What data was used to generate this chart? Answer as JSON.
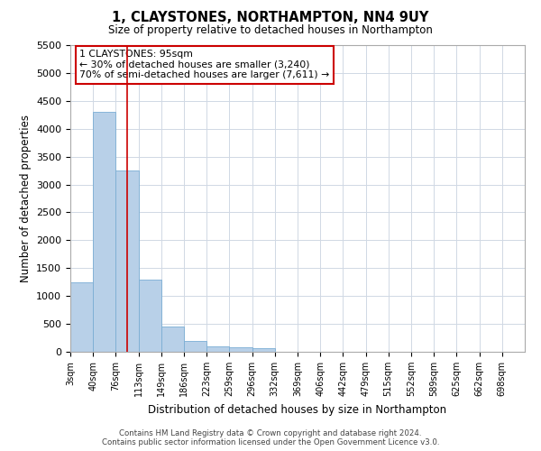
{
  "title": "1, CLAYSTONES, NORTHAMPTON, NN4 9UY",
  "subtitle": "Size of property relative to detached houses in Northampton",
  "xlabel": "Distribution of detached houses by size in Northampton",
  "ylabel": "Number of detached properties",
  "footer_line1": "Contains HM Land Registry data © Crown copyright and database right 2024.",
  "footer_line2": "Contains public sector information licensed under the Open Government Licence v3.0.",
  "annotation_line1": "1 CLAYSTONES: 95sqm",
  "annotation_line2": "← 30% of detached houses are smaller (3,240)",
  "annotation_line3": "70% of semi-detached houses are larger (7,611) →",
  "bar_edges": [
    3,
    40,
    76,
    113,
    149,
    186,
    223,
    259,
    296,
    332,
    369,
    406,
    442,
    479,
    515,
    552,
    589,
    625,
    662,
    698,
    735
  ],
  "bar_heights": [
    1250,
    4300,
    3250,
    1300,
    450,
    200,
    100,
    75,
    60,
    0,
    0,
    0,
    0,
    0,
    0,
    0,
    0,
    0,
    0,
    0
  ],
  "bar_color": "#b8d0e8",
  "bar_edgecolor": "#7aadd4",
  "red_line_x": 95,
  "ylim": [
    0,
    5500
  ],
  "yticks": [
    0,
    500,
    1000,
    1500,
    2000,
    2500,
    3000,
    3500,
    4000,
    4500,
    5000,
    5500
  ],
  "bg_color": "#ffffff",
  "grid_color": "#d0d8e4",
  "annotation_box_edgecolor": "#cc0000",
  "annotation_box_facecolor": "#ffffff"
}
